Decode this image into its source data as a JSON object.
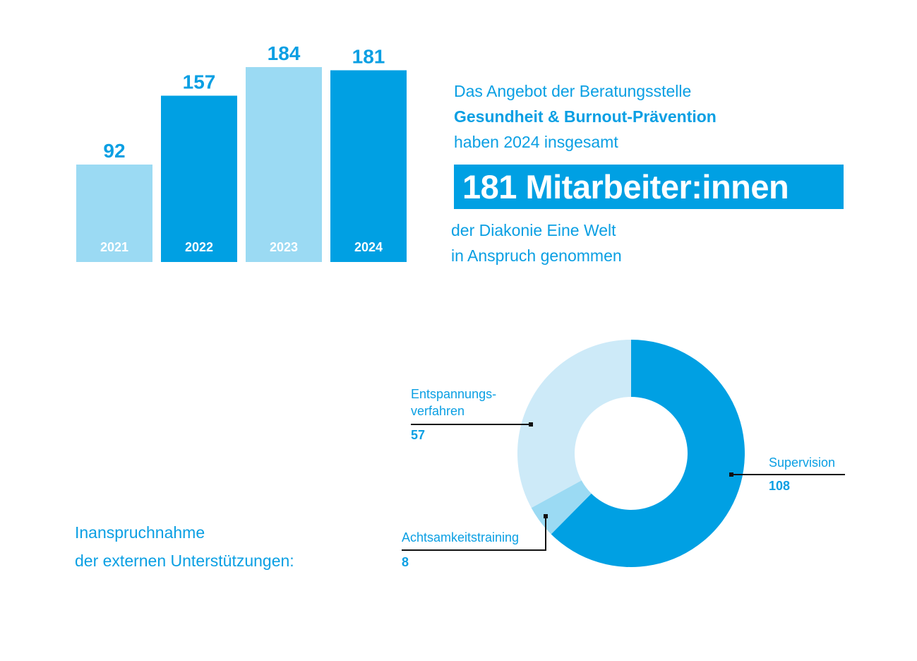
{
  "colors": {
    "dark_blue": "#00a0e3",
    "light_blue": "#9bdaf3",
    "pale_blue": "#cdeaf8",
    "text_blue": "#0a9fe3"
  },
  "info": {
    "line1": "Das Angebot der Beratungsstelle",
    "line2": "Gesundheit & Burnout-Prävention",
    "line3": "haben 2024 insgesamt",
    "highlight": "181 Mitarbeiter:innen",
    "line4": "der Diakonie Eine Welt",
    "line5": "in Anspruch genommen"
  },
  "caption": {
    "line1": "Inanspruchnahme",
    "line2": "der externen Unterstützungen:"
  },
  "chart_data": [
    {
      "type": "bar",
      "categories": [
        "2021",
        "2022",
        "2023",
        "2024"
      ],
      "values": [
        92,
        157,
        184,
        181
      ],
      "colors": [
        "#9bdaf3",
        "#00a0e3",
        "#9bdaf3",
        "#00a0e3"
      ],
      "ylim": [
        0,
        184
      ]
    },
    {
      "type": "pie",
      "donut": true,
      "slices": [
        {
          "label": "Supervision",
          "value": 108,
          "color": "#00a0e3"
        },
        {
          "label": "Achtsamkeitstraining",
          "value": 8,
          "color": "#9bdaf3"
        },
        {
          "label": "Entspannungs-\nverfahren",
          "value": 57,
          "color": "#cdeaf8"
        }
      ]
    }
  ]
}
